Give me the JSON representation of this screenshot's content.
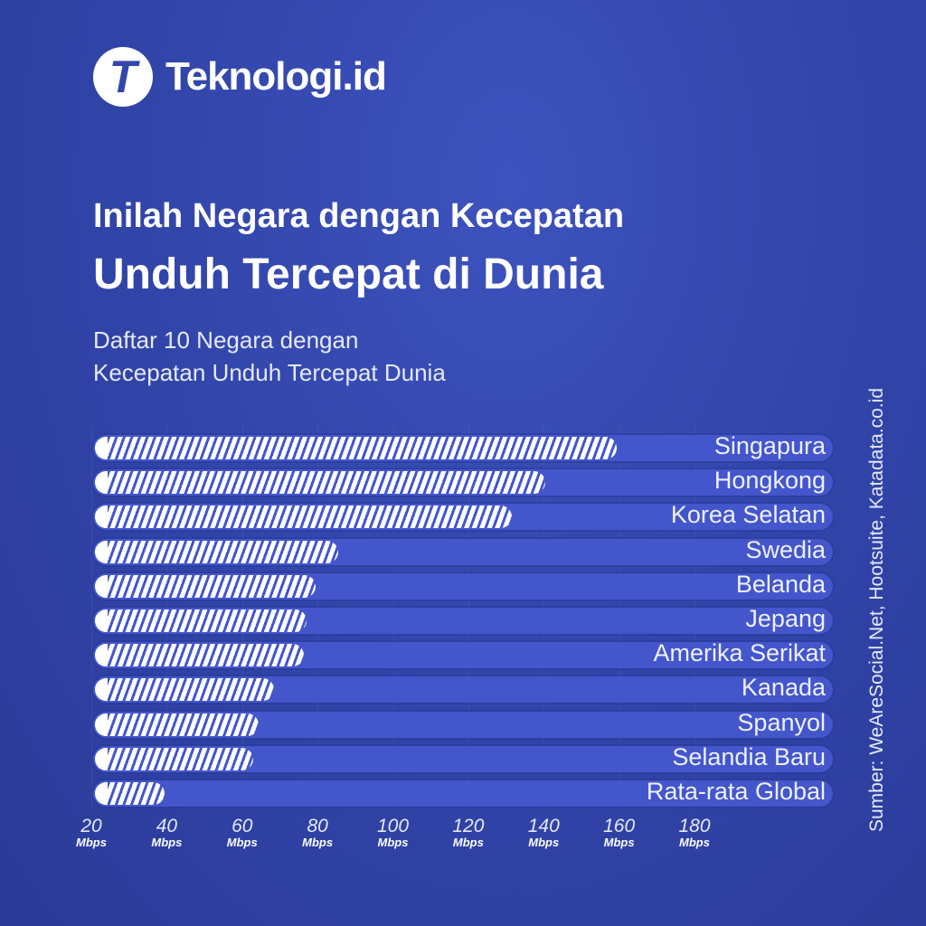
{
  "brand": {
    "logo_letter": "T",
    "name": "Teknologi.id"
  },
  "title_line1": "Inilah Negara dengan Kecepatan",
  "title_line2": "Unduh Tercepat di Dunia",
  "subtitle_line1": "Daftar 10 Negara dengan",
  "subtitle_line2": "Kecepatan Unduh Tercepat Dunia",
  "source": "Sumber: WeAreSocial.Net, Hootsuite, Katadata.co.id",
  "colors": {
    "background": "#3246ab",
    "track": "#4356cc",
    "fill": "#ffffff"
  },
  "chart_data": {
    "type": "bar",
    "orientation": "horizontal",
    "title": "Inilah Negara dengan Kecepatan Unduh Tercepat di Dunia",
    "xlabel": "Mbps",
    "xlim": [
      20,
      180
    ],
    "categories": [
      "Singapura",
      "Hongkong",
      "Korea Selatan",
      "Swedia",
      "Belanda",
      "Jepang",
      "Amerika Serikat",
      "Kanada",
      "Spanyol",
      "Selandia Baru",
      "Rata-rata Global"
    ],
    "values": [
      159,
      140,
      131,
      85,
      79,
      76.5,
      76,
      68,
      64,
      62.5,
      39
    ],
    "ticks": [
      {
        "value": 20,
        "label": "20",
        "unit": "Mbps"
      },
      {
        "value": 40,
        "label": "40",
        "unit": "Mbps"
      },
      {
        "value": 60,
        "label": "60",
        "unit": "Mbps"
      },
      {
        "value": 80,
        "label": "80",
        "unit": "Mbps"
      },
      {
        "value": 100,
        "label": "100",
        "unit": "Mbps"
      },
      {
        "value": 120,
        "label": "120",
        "unit": "Mbps"
      },
      {
        "value": 140,
        "label": "140",
        "unit": "Mbps"
      },
      {
        "value": 160,
        "label": "160",
        "unit": "Mbps"
      },
      {
        "value": 180,
        "label": "180",
        "unit": "Mbps"
      }
    ],
    "grid": true
  }
}
